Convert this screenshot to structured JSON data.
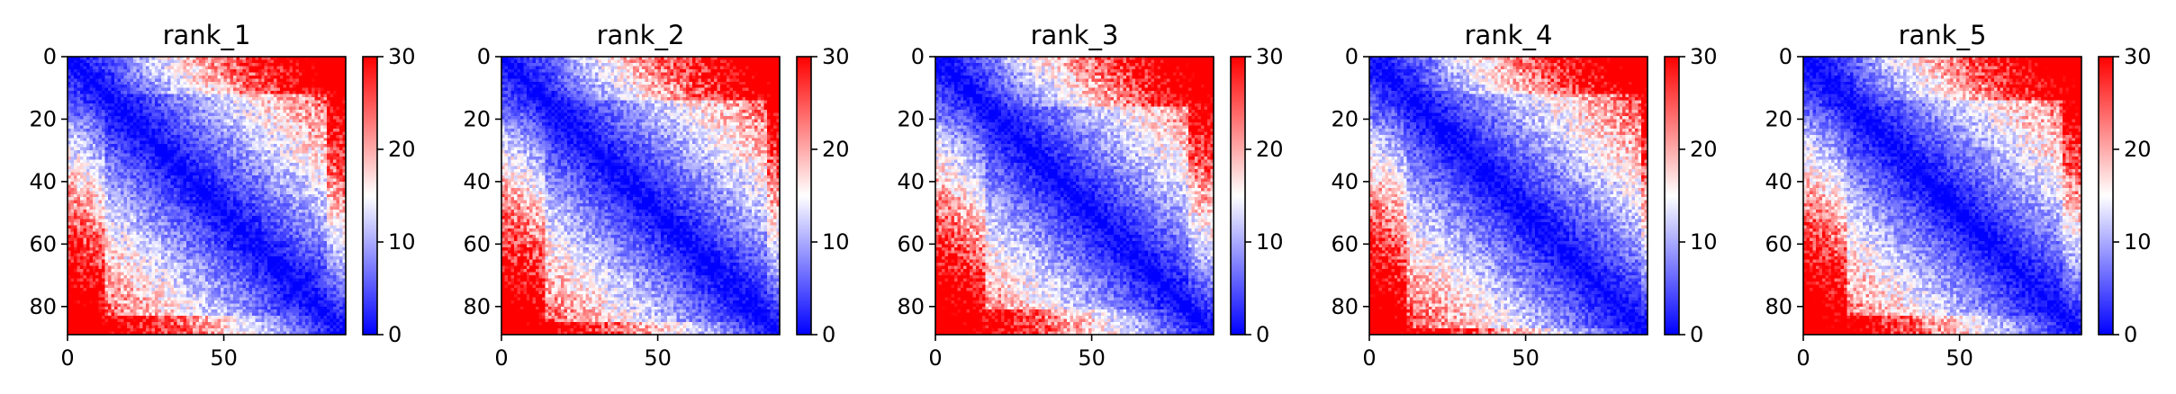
{
  "figure": {
    "panels": [
      "rank_1",
      "rank_2",
      "rank_3",
      "rank_4",
      "rank_5"
    ]
  },
  "chart_data": [
    {
      "type": "heatmap",
      "title": "rank_1",
      "matrix_size": 89,
      "seed": 11,
      "diag_band": [
        30,
        62
      ],
      "tad_block": [
        12,
        52
      ],
      "xticks": [
        0,
        50
      ],
      "yticks": [
        0,
        20,
        40,
        60,
        80
      ],
      "xlim": [
        0,
        89
      ],
      "ylim": [
        89,
        0
      ],
      "colorbar": {
        "ticks": [
          0,
          10,
          20,
          30
        ],
        "range": [
          0,
          30
        ],
        "colormap": "bwr",
        "colors": [
          "#0000ff",
          "#ffffff",
          "#ff0000"
        ]
      },
      "grid": false
    },
    {
      "type": "heatmap",
      "title": "rank_2",
      "matrix_size": 89,
      "seed": 23,
      "diag_band": [
        30,
        64
      ],
      "tad_block": [
        14,
        54
      ],
      "xticks": [
        0,
        50
      ],
      "yticks": [
        0,
        20,
        40,
        60,
        80
      ],
      "xlim": [
        0,
        89
      ],
      "ylim": [
        89,
        0
      ],
      "colorbar": {
        "ticks": [
          0,
          10,
          20,
          30
        ],
        "range": [
          0,
          30
        ],
        "colormap": "bwr",
        "colors": [
          "#0000ff",
          "#ffffff",
          "#ff0000"
        ]
      },
      "grid": false
    },
    {
      "type": "heatmap",
      "title": "rank_3",
      "matrix_size": 89,
      "seed": 37,
      "diag_band": [
        26,
        58
      ],
      "tad_block": [
        16,
        50
      ],
      "xticks": [
        0,
        50
      ],
      "yticks": [
        0,
        20,
        40,
        60,
        80
      ],
      "xlim": [
        0,
        89
      ],
      "ylim": [
        89,
        0
      ],
      "colorbar": {
        "ticks": [
          0,
          10,
          20,
          30
        ],
        "range": [
          0,
          30
        ],
        "colormap": "bwr",
        "colors": [
          "#0000ff",
          "#ffffff",
          "#ff0000"
        ]
      },
      "grid": false
    },
    {
      "type": "heatmap",
      "title": "rank_4",
      "matrix_size": 89,
      "seed": 41,
      "diag_band": [
        32,
        66
      ],
      "tad_block": [
        12,
        56
      ],
      "xticks": [
        0,
        50
      ],
      "yticks": [
        0,
        20,
        40,
        60,
        80
      ],
      "xlim": [
        0,
        89
      ],
      "ylim": [
        89,
        0
      ],
      "colorbar": {
        "ticks": [
          0,
          10,
          20,
          30
        ],
        "range": [
          0,
          30
        ],
        "colormap": "bwr",
        "colors": [
          "#0000ff",
          "#ffffff",
          "#ff0000"
        ]
      },
      "grid": false
    },
    {
      "type": "heatmap",
      "title": "rank_5",
      "matrix_size": 89,
      "seed": 53,
      "diag_band": [
        30,
        62
      ],
      "tad_block": [
        14,
        52
      ],
      "xticks": [
        0,
        50
      ],
      "yticks": [
        0,
        20,
        40,
        60,
        80
      ],
      "xlim": [
        0,
        89
      ],
      "ylim": [
        89,
        0
      ],
      "colorbar": {
        "ticks": [
          0,
          10,
          20,
          30
        ],
        "range": [
          0,
          30
        ],
        "colormap": "bwr",
        "colors": [
          "#0000ff",
          "#ffffff",
          "#ff0000"
        ]
      },
      "grid": false
    }
  ]
}
